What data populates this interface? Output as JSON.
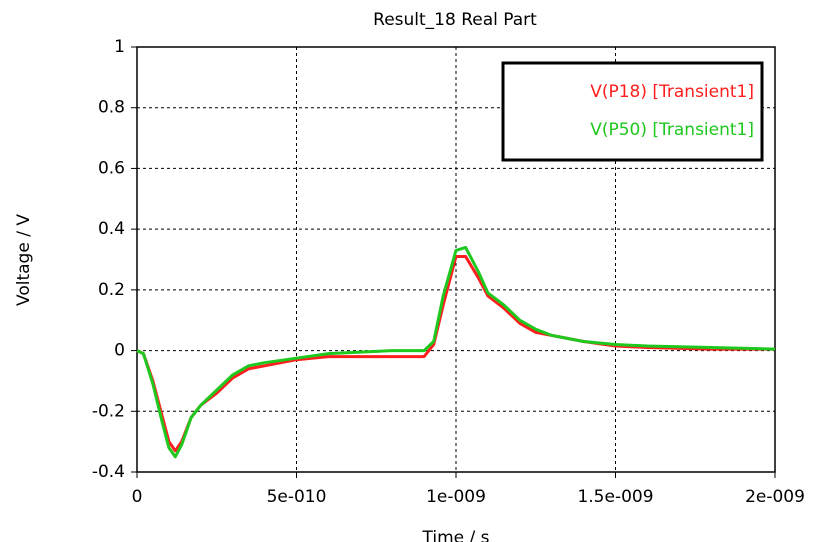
{
  "chart_data": {
    "type": "line",
    "title": "Result_18 Real Part",
    "xlabel": "Time / s",
    "ylabel": "Voltage / V",
    "x": [
      0,
      2e-11,
      5e-11,
      8e-11,
      1e-10,
      1.2e-10,
      1.4e-10,
      1.7e-10,
      2e-10,
      2.5e-10,
      3e-10,
      3.5e-10,
      4e-10,
      5e-10,
      6e-10,
      7e-10,
      8e-10,
      9e-10,
      9.3e-10,
      9.6e-10,
      1e-09,
      1.03e-09,
      1.07e-09,
      1.1e-09,
      1.15e-09,
      1.2e-09,
      1.25e-09,
      1.3e-09,
      1.4e-09,
      1.5e-09,
      1.6e-09,
      1.8e-09,
      2e-09
    ],
    "series": [
      {
        "name": "V(P18) [Transient1]",
        "color": "#ff1e1e",
        "values": [
          0,
          -0.01,
          -0.1,
          -0.22,
          -0.3,
          -0.33,
          -0.3,
          -0.22,
          -0.18,
          -0.14,
          -0.09,
          -0.06,
          -0.05,
          -0.03,
          -0.02,
          -0.02,
          -0.02,
          -0.02,
          0.02,
          0.15,
          0.31,
          0.31,
          0.24,
          0.18,
          0.14,
          0.09,
          0.06,
          0.05,
          0.03,
          0.015,
          0.01,
          0.005,
          0.005
        ]
      },
      {
        "name": "V(P50) [Transient1]",
        "color": "#1ec81e",
        "values": [
          0,
          -0.01,
          -0.11,
          -0.24,
          -0.32,
          -0.35,
          -0.31,
          -0.22,
          -0.18,
          -0.13,
          -0.08,
          -0.05,
          -0.04,
          -0.025,
          -0.01,
          -0.005,
          0,
          0,
          0.03,
          0.18,
          0.33,
          0.34,
          0.26,
          0.19,
          0.15,
          0.1,
          0.07,
          0.05,
          0.03,
          0.02,
          0.015,
          0.01,
          0.005
        ]
      }
    ],
    "xlim": [
      0,
      2e-09
    ],
    "xticks": [
      0,
      {
        "value": 5e-10,
        "label": "5e-010"
      },
      {
        "value": 1e-09,
        "label": "1e-009"
      },
      {
        "value": 1.5e-09,
        "label": "1.5e-009"
      },
      {
        "value": 2e-09,
        "label": "2e-009"
      }
    ],
    "ylim": [
      -0.4,
      1
    ],
    "yticks": [
      -0.4,
      -0.2,
      0,
      0.2,
      0.4,
      0.6,
      0.8,
      1
    ],
    "grid": true,
    "legend": "upper right"
  }
}
